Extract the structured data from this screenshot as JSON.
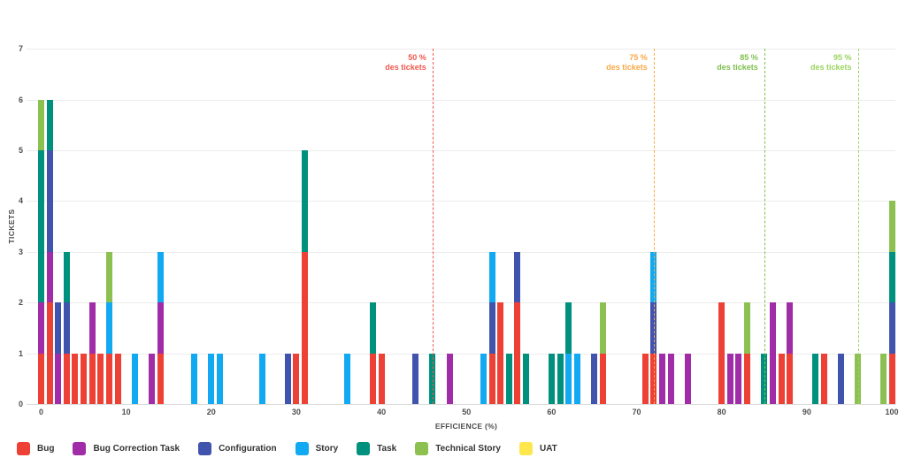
{
  "chart_data": {
    "type": "bar",
    "stacked": true,
    "title": "",
    "xlabel": "EFFICIENCE (%)",
    "ylabel": "TICKETS",
    "xlim": [
      -2,
      102
    ],
    "ylim": [
      0,
      7
    ],
    "x_ticks": [
      0,
      10,
      20,
      30,
      40,
      50,
      60,
      70,
      80,
      90,
      100
    ],
    "y_ticks": [
      0,
      1,
      2,
      3,
      4,
      5,
      6,
      7
    ],
    "grid": "horizontal",
    "legend_position": "bottom-left",
    "series": [
      {
        "name": "Bug",
        "color": "#ee4136"
      },
      {
        "name": "Bug Correction Task",
        "color": "#a12ca8"
      },
      {
        "name": "Configuration",
        "color": "#4053ad"
      },
      {
        "name": "Story",
        "color": "#10a9f2"
      },
      {
        "name": "Task",
        "color": "#00917e"
      },
      {
        "name": "Technical Story",
        "color": "#8cc152"
      },
      {
        "name": "UAT",
        "color": "#fde74c"
      }
    ],
    "bars": [
      {
        "x": 0,
        "segments": [
          [
            "Bug",
            1
          ],
          [
            "Bug Correction Task",
            1
          ],
          [
            "Task",
            3
          ],
          [
            "Technical Story",
            1
          ]
        ]
      },
      {
        "x": 1,
        "segments": [
          [
            "Bug",
            2
          ],
          [
            "Bug Correction Task",
            1
          ],
          [
            "Configuration",
            2
          ],
          [
            "Task",
            1
          ]
        ]
      },
      {
        "x": 2,
        "segments": [
          [
            "Bug Correction Task",
            1
          ],
          [
            "Configuration",
            1
          ]
        ]
      },
      {
        "x": 3,
        "segments": [
          [
            "Bug",
            1
          ],
          [
            "Configuration",
            1
          ],
          [
            "Task",
            1
          ]
        ]
      },
      {
        "x": 4,
        "segments": [
          [
            "Bug",
            1
          ]
        ]
      },
      {
        "x": 5,
        "segments": [
          [
            "Bug",
            1
          ]
        ]
      },
      {
        "x": 6,
        "segments": [
          [
            "Bug",
            1
          ],
          [
            "Bug Correction Task",
            1
          ]
        ]
      },
      {
        "x": 7,
        "segments": [
          [
            "Bug",
            1
          ]
        ]
      },
      {
        "x": 8,
        "segments": [
          [
            "Bug",
            1
          ],
          [
            "Story",
            1
          ],
          [
            "Technical Story",
            1
          ]
        ]
      },
      {
        "x": 9,
        "segments": [
          [
            "Bug",
            1
          ]
        ]
      },
      {
        "x": 11,
        "segments": [
          [
            "Story",
            1
          ]
        ]
      },
      {
        "x": 13,
        "segments": [
          [
            "Bug Correction Task",
            1
          ]
        ]
      },
      {
        "x": 14,
        "segments": [
          [
            "Bug",
            1
          ],
          [
            "Bug Correction Task",
            1
          ],
          [
            "Story",
            1
          ]
        ]
      },
      {
        "x": 18,
        "segments": [
          [
            "Story",
            1
          ]
        ]
      },
      {
        "x": 20,
        "segments": [
          [
            "Story",
            1
          ]
        ]
      },
      {
        "x": 21,
        "segments": [
          [
            "Story",
            1
          ]
        ]
      },
      {
        "x": 26,
        "segments": [
          [
            "Story",
            1
          ]
        ]
      },
      {
        "x": 29,
        "segments": [
          [
            "Configuration",
            1
          ]
        ]
      },
      {
        "x": 30,
        "segments": [
          [
            "Bug",
            1
          ]
        ]
      },
      {
        "x": 31,
        "segments": [
          [
            "Bug",
            3
          ],
          [
            "Task",
            2
          ]
        ]
      },
      {
        "x": 36,
        "segments": [
          [
            "Story",
            1
          ]
        ]
      },
      {
        "x": 39,
        "segments": [
          [
            "Bug",
            1
          ],
          [
            "Task",
            1
          ]
        ]
      },
      {
        "x": 40,
        "segments": [
          [
            "Bug",
            1
          ]
        ]
      },
      {
        "x": 44,
        "segments": [
          [
            "Configuration",
            1
          ]
        ]
      },
      {
        "x": 46,
        "segments": [
          [
            "Task",
            1
          ]
        ]
      },
      {
        "x": 48,
        "segments": [
          [
            "Bug Correction Task",
            1
          ]
        ]
      },
      {
        "x": 52,
        "segments": [
          [
            "Story",
            1
          ]
        ]
      },
      {
        "x": 53,
        "segments": [
          [
            "Bug",
            1
          ],
          [
            "Configuration",
            1
          ],
          [
            "Story",
            1
          ]
        ]
      },
      {
        "x": 54,
        "segments": [
          [
            "Bug",
            2
          ]
        ]
      },
      {
        "x": 55,
        "segments": [
          [
            "Task",
            1
          ]
        ]
      },
      {
        "x": 56,
        "segments": [
          [
            "Bug",
            2
          ],
          [
            "Configuration",
            1
          ]
        ]
      },
      {
        "x": 57,
        "segments": [
          [
            "Task",
            1
          ]
        ]
      },
      {
        "x": 60,
        "segments": [
          [
            "Task",
            1
          ]
        ]
      },
      {
        "x": 61,
        "segments": [
          [
            "Task",
            1
          ]
        ]
      },
      {
        "x": 62,
        "segments": [
          [
            "Story",
            1
          ],
          [
            "Task",
            1
          ]
        ]
      },
      {
        "x": 63,
        "segments": [
          [
            "Story",
            1
          ]
        ]
      },
      {
        "x": 65,
        "segments": [
          [
            "Configuration",
            1
          ]
        ]
      },
      {
        "x": 66,
        "segments": [
          [
            "Bug",
            1
          ],
          [
            "Technical Story",
            1
          ]
        ]
      },
      {
        "x": 71,
        "segments": [
          [
            "Bug",
            1
          ]
        ]
      },
      {
        "x": 72,
        "segments": [
          [
            "Bug",
            1
          ],
          [
            "Configuration",
            1
          ],
          [
            "Story",
            1
          ]
        ]
      },
      {
        "x": 73,
        "segments": [
          [
            "Bug Correction Task",
            1
          ]
        ]
      },
      {
        "x": 74,
        "segments": [
          [
            "Bug Correction Task",
            1
          ]
        ]
      },
      {
        "x": 76,
        "segments": [
          [
            "Bug Correction Task",
            1
          ]
        ]
      },
      {
        "x": 80,
        "segments": [
          [
            "Bug",
            2
          ]
        ]
      },
      {
        "x": 81,
        "segments": [
          [
            "Bug Correction Task",
            1
          ]
        ]
      },
      {
        "x": 82,
        "segments": [
          [
            "Bug Correction Task",
            1
          ]
        ]
      },
      {
        "x": 83,
        "segments": [
          [
            "Bug",
            1
          ],
          [
            "Technical Story",
            1
          ]
        ]
      },
      {
        "x": 85,
        "segments": [
          [
            "Task",
            1
          ]
        ]
      },
      {
        "x": 86,
        "segments": [
          [
            "Bug Correction Task",
            2
          ]
        ]
      },
      {
        "x": 87,
        "segments": [
          [
            "Bug",
            1
          ]
        ]
      },
      {
        "x": 88,
        "segments": [
          [
            "Bug",
            1
          ],
          [
            "Bug Correction Task",
            1
          ]
        ]
      },
      {
        "x": 91,
        "segments": [
          [
            "Task",
            1
          ]
        ]
      },
      {
        "x": 92,
        "segments": [
          [
            "Bug",
            1
          ]
        ]
      },
      {
        "x": 94,
        "segments": [
          [
            "Configuration",
            1
          ]
        ]
      },
      {
        "x": 96,
        "segments": [
          [
            "Technical Story",
            1
          ]
        ]
      },
      {
        "x": 99,
        "segments": [
          [
            "Technical Story",
            1
          ]
        ]
      },
      {
        "x": 100,
        "segments": [
          [
            "Bug",
            1
          ],
          [
            "Configuration",
            1
          ],
          [
            "Task",
            1
          ],
          [
            "Technical Story",
            1
          ]
        ]
      }
    ],
    "reference_lines": [
      {
        "x": 46,
        "color": "#f0564c",
        "label": [
          "50 %",
          "des tickets"
        ]
      },
      {
        "x": 72,
        "color": "#f9a845",
        "label": [
          "75 %",
          "des tickets"
        ]
      },
      {
        "x": 85,
        "color": "#7cbf4b",
        "label": [
          "85 %",
          "des tickets"
        ]
      },
      {
        "x": 96,
        "color": "#9ad45f",
        "label": [
          "95 %",
          "des tickets"
        ]
      }
    ]
  }
}
